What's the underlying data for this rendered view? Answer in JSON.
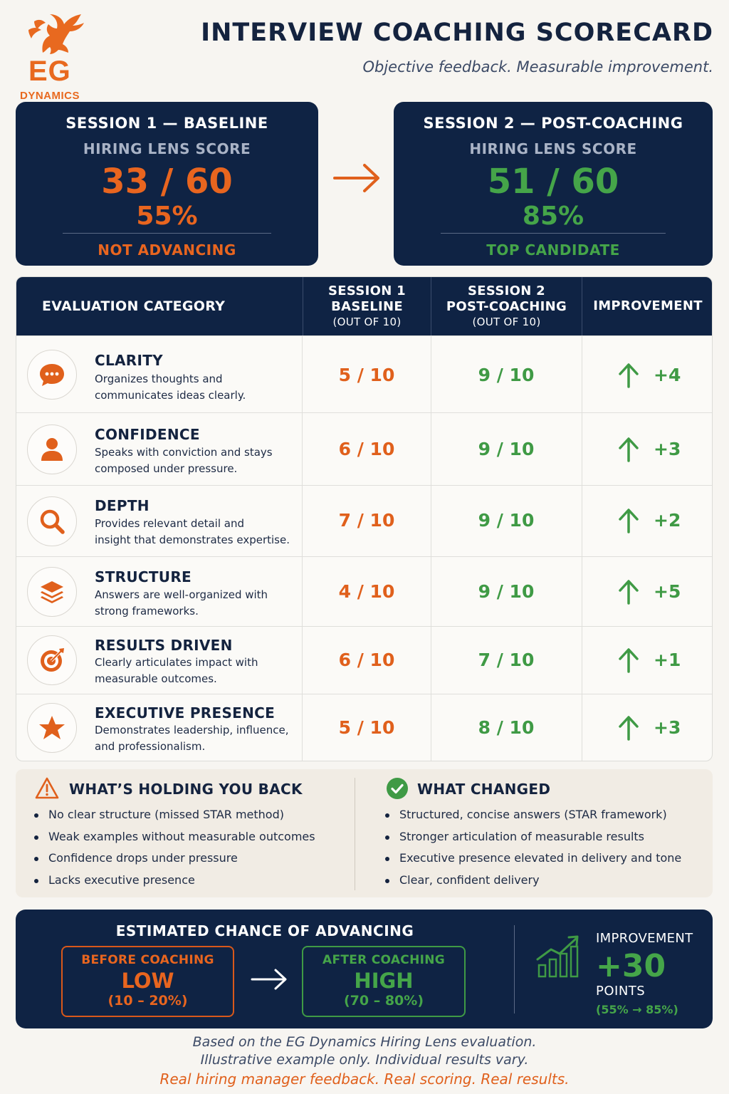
{
  "header": {
    "logo_text": "EG",
    "logo_subtext": "DYNAMICS",
    "title": "INTERVIEW COACHING SCORECARD",
    "subtitle": "Objective feedback. Measurable improvement."
  },
  "sessions": [
    {
      "title": "SESSION 1 — BASELINE",
      "lens_label": "HIRING LENS SCORE",
      "score": "33 / 60",
      "percent": "55%",
      "status": "NOT ADVANCING",
      "color": "#e8651f"
    },
    {
      "title": "SESSION 2 — POST-COACHING",
      "lens_label": "HIRING LENS SCORE",
      "score": "51 / 60",
      "percent": "85%",
      "status": "TOP CANDIDATE",
      "color": "#45a549"
    }
  ],
  "table": {
    "headers": {
      "category": "EVALUATION CATEGORY",
      "s1_line1": "SESSION 1",
      "s1_line2": "BASELINE",
      "s1_sub": "(OUT OF 10)",
      "s2_line1": "SESSION 2",
      "s2_line2": "POST-COACHING",
      "s2_sub": "(OUT OF 10)",
      "improvement": "IMPROVEMENT"
    },
    "rows": [
      {
        "icon": "chat-bubble-icon",
        "name": "CLARITY",
        "desc1": "Organizes thoughts and",
        "desc2": "communicates ideas clearly.",
        "s1": "5 / 10",
        "s2": "9 / 10",
        "imp": "+4"
      },
      {
        "icon": "person-icon",
        "name": "CONFIDENCE",
        "desc1": "Speaks with conviction and stays",
        "desc2": "composed under pressure.",
        "s1": "6 / 10",
        "s2": "9 / 10",
        "imp": "+3"
      },
      {
        "icon": "magnifier-icon",
        "name": "DEPTH",
        "desc1": "Provides relevant detail and",
        "desc2": "insight that demonstrates expertise.",
        "s1": "7 / 10",
        "s2": "9 / 10",
        "imp": "+2"
      },
      {
        "icon": "layers-icon",
        "name": "STRUCTURE",
        "desc1": "Answers are well-organized with",
        "desc2": "strong frameworks.",
        "s1": "4 / 10",
        "s2": "9 / 10",
        "imp": "+5"
      },
      {
        "icon": "target-icon",
        "name": "RESULTS DRIVEN",
        "desc1": "Clearly articulates impact with",
        "desc2": "measurable outcomes.",
        "s1": "6 / 10",
        "s2": "7 / 10",
        "imp": "+1"
      },
      {
        "icon": "star-icon",
        "name": "EXECUTIVE PRESENCE",
        "desc1": "Demonstrates leadership, influence,",
        "desc2": "and professionalism.",
        "s1": "5 / 10",
        "s2": "8 / 10",
        "imp": "+3"
      }
    ]
  },
  "feedback": {
    "holding_title": "WHAT’S HOLDING YOU BACK",
    "holding_items": [
      "No clear structure (missed STAR method)",
      "Weak examples without measurable outcomes",
      "Confidence drops under pressure",
      "Lacks executive presence"
    ],
    "changed_title": "WHAT CHANGED",
    "changed_items": [
      "Structured, concise answers (STAR framework)",
      "Stronger articulation of measurable results",
      "Executive presence elevated in delivery and tone",
      "Clear, confident delivery"
    ]
  },
  "chance": {
    "title": "ESTIMATED CHANCE OF ADVANCING",
    "before_label": "BEFORE COACHING",
    "before_value": "LOW",
    "before_range": "(10 – 20%)",
    "after_label": "AFTER COACHING",
    "after_value": "HIGH",
    "after_range": "(70 – 80%)",
    "improvement_label": "IMPROVEMENT",
    "improvement_value": "+30",
    "points_label": "POINTS",
    "points_range": "(55% → 85%)"
  },
  "footer": {
    "line1": "Based on the EG Dynamics Hiring Lens evaluation.",
    "line2": "Illustrative example only. Individual results vary.",
    "line3": "Real hiring manager feedback. Real scoring. Real results."
  },
  "colors": {
    "navy": "#0f2344",
    "orange": "#e0601c",
    "green": "#3f9a45",
    "background": "#f7f5f1"
  }
}
